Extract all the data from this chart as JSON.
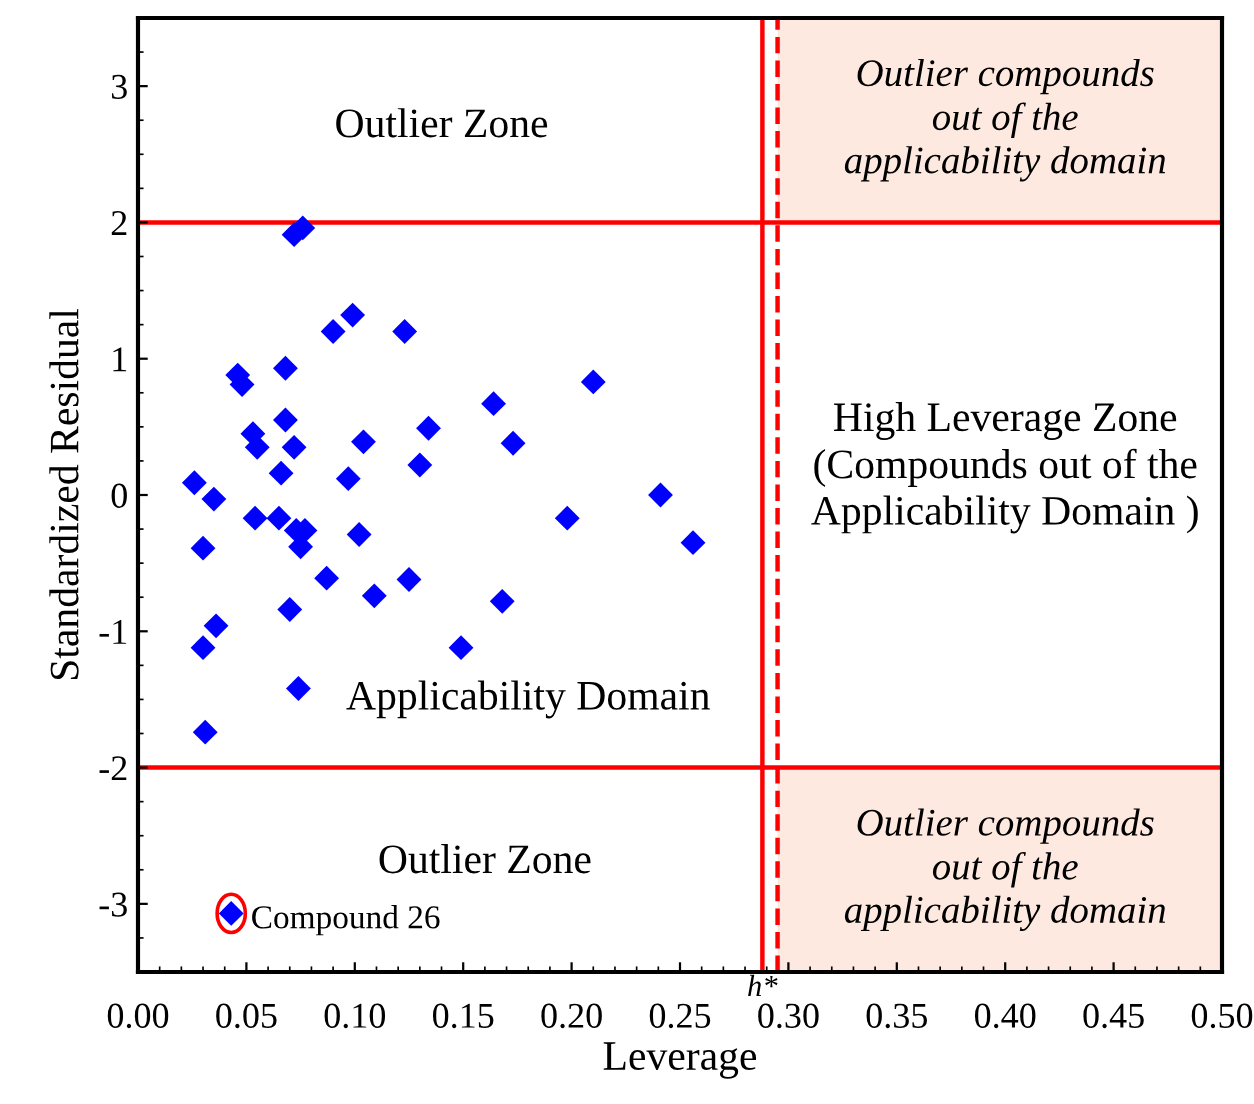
{
  "chart_data": {
    "type": "scatter",
    "xlabel": "Leverage",
    "ylabel": "Standardized Residual",
    "xlim": [
      0,
      0.5
    ],
    "ylim": [
      -3.5,
      3.5
    ],
    "xticks": [
      {
        "value": 0,
        "label": "0.00"
      },
      {
        "value": 0.05,
        "label": "0.05"
      },
      {
        "value": 0.1,
        "label": "0.10"
      },
      {
        "value": 0.15,
        "label": "0.15"
      },
      {
        "value": 0.2,
        "label": "0.20"
      },
      {
        "value": 0.25,
        "label": "0.25"
      },
      {
        "value": 0.3,
        "label": "0.30"
      },
      {
        "value": 0.35,
        "label": "0.35"
      },
      {
        "value": 0.4,
        "label": "0.40"
      },
      {
        "value": 0.45,
        "label": "0.45"
      },
      {
        "value": 0.5,
        "label": "0.50"
      }
    ],
    "yticks": [
      {
        "value": -3,
        "label": "-3"
      },
      {
        "value": -2,
        "label": "-2"
      },
      {
        "value": -1,
        "label": "-1"
      },
      0,
      1,
      2,
      3
    ],
    "marker": "diamond",
    "grid": false,
    "series": [
      {
        "color": "#0000ff",
        "x": [
          0.026,
          0.03,
          0.035,
          0.036,
          0.03,
          0.031,
          0.046,
          0.048,
          0.053,
          0.055,
          0.054,
          0.065,
          0.066,
          0.068,
          0.068,
          0.072,
          0.072,
          0.076,
          0.073,
          0.075,
          0.077,
          0.07,
          0.074,
          0.087,
          0.09,
          0.099,
          0.097,
          0.102,
          0.104,
          0.109,
          0.123,
          0.125,
          0.13,
          0.134,
          0.149,
          0.164,
          0.168,
          0.173,
          0.198,
          0.21,
          0.241,
          0.256,
          0.043
        ],
        "values": [
          0.09,
          -0.39,
          -0.03,
          -0.96,
          -1.12,
          -1.74,
          0.88,
          0.81,
          0.45,
          0.35,
          -0.17,
          -0.17,
          0.16,
          0.55,
          0.93,
          0.35,
          1.91,
          1.96,
          -0.26,
          -0.38,
          -0.26,
          -0.84,
          -1.42,
          -0.61,
          1.2,
          1.32,
          0.12,
          -0.29,
          0.39,
          -0.74,
          1.2,
          -0.62,
          0.22,
          0.49,
          -1.12,
          0.67,
          -0.78,
          0.38,
          -0.17,
          0.83,
          0.0,
          -0.35,
          -3.07
        ]
      }
    ],
    "ref_lines": [
      {
        "axis": "y",
        "value": 2,
        "color": "#ff0000",
        "line_style": "solid"
      },
      {
        "axis": "y",
        "value": -2,
        "color": "#ff0000",
        "line_style": "solid"
      },
      {
        "axis": "x",
        "value": 0.288,
        "color": "#ff0000",
        "line_style": "solid"
      },
      {
        "axis": "x",
        "value": 0.295,
        "label": "h*",
        "color": "#ff0000",
        "line_style": "dashed"
      }
    ],
    "bands": [
      {
        "axis": "x",
        "from": 0.295,
        "to": 0.5,
        "color": "#fde9df"
      }
    ],
    "annotations": [
      "Outlier Zone",
      "Outlier compounds\nout of the\napplicability domain",
      "High Leverage Zone\n(Compounds out of the\nApplicability Domain )",
      "Applicability Domain",
      "Outlier Zone",
      "Outlier compounds\nout of the\napplicability domain",
      {
        "text": "Compound 26",
        "x": 0.043,
        "y": -3.07
      }
    ]
  }
}
